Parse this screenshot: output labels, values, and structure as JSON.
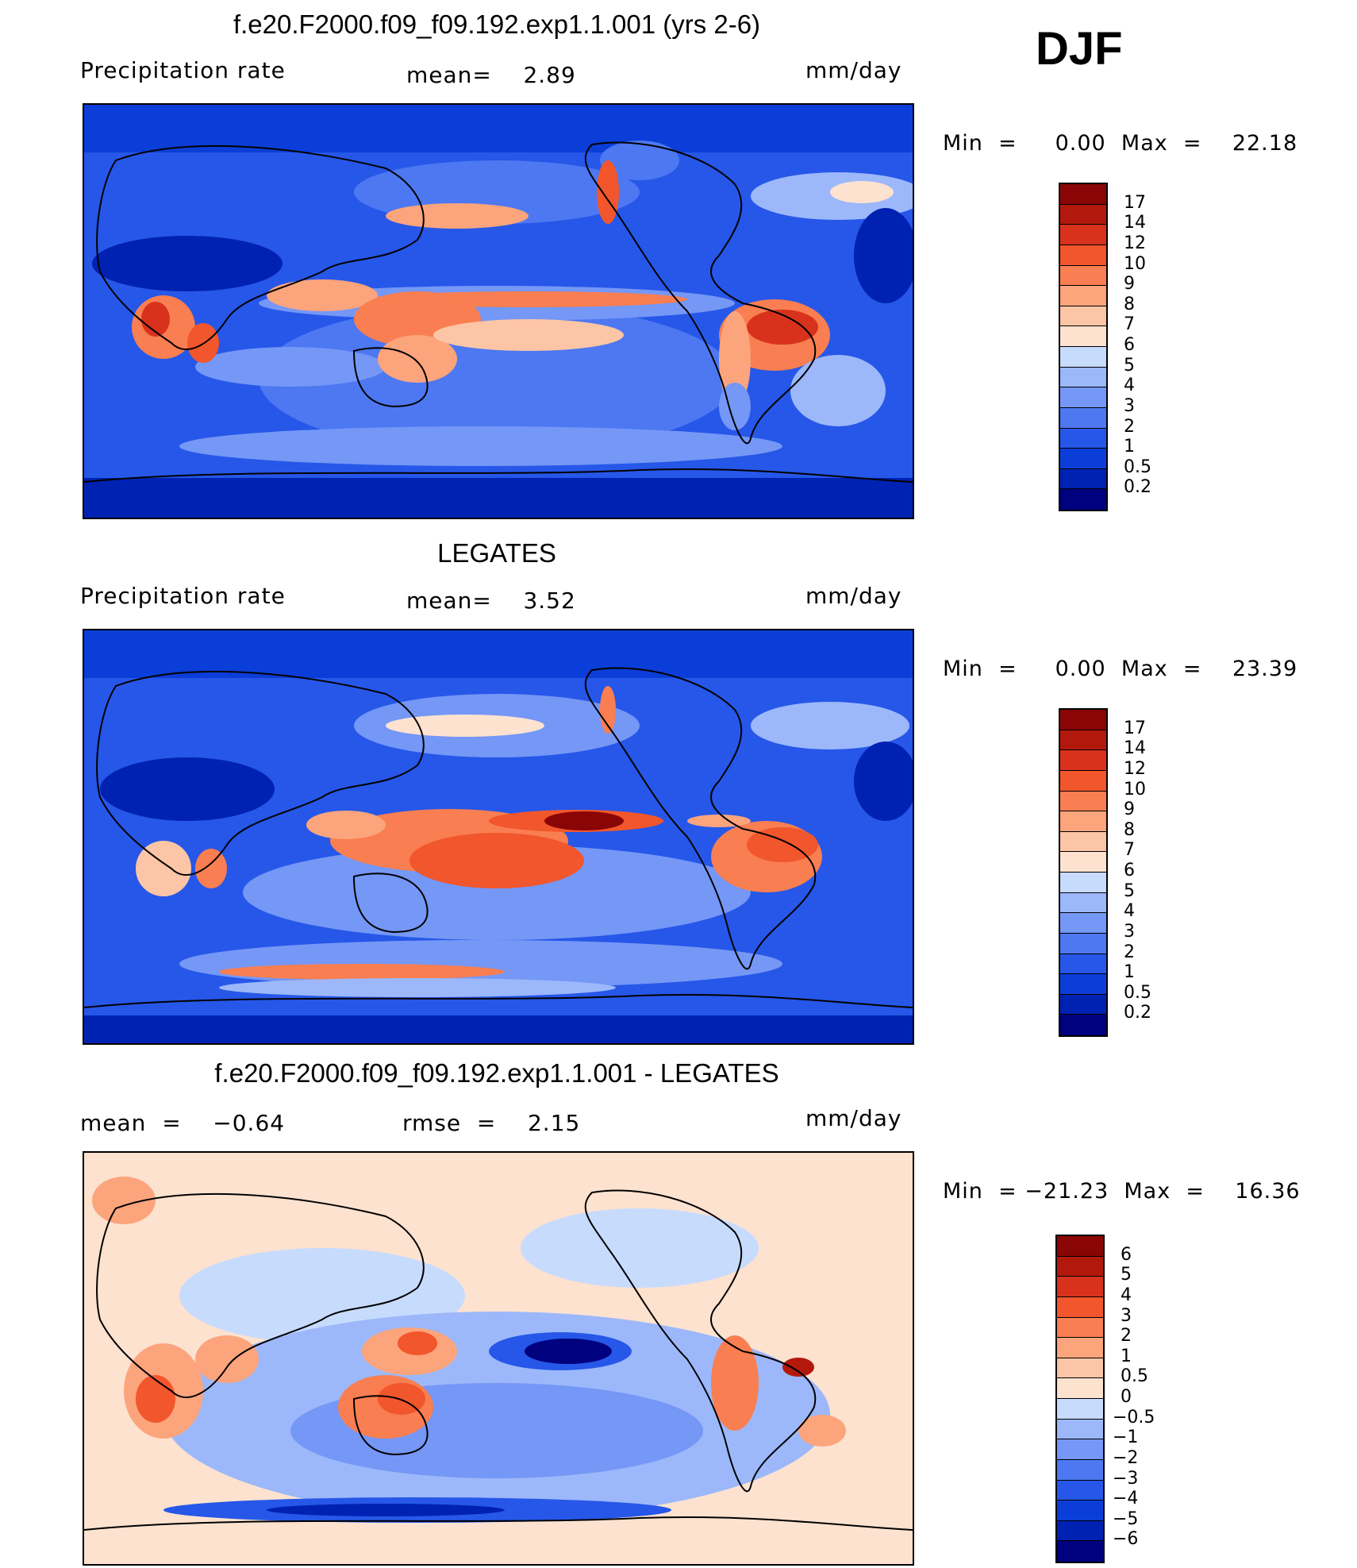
{
  "season": "DJF",
  "colors": {
    "precip": [
      "#00017f",
      "#0022b2",
      "#0b3ed8",
      "#2657e8",
      "#4d78f2",
      "#7597f6",
      "#9cb8fa",
      "#c7dbfd",
      "#fde2d0",
      "#fcc5a6",
      "#fca47c",
      "#f97e51",
      "#f2562c",
      "#d8321c",
      "#b2190c",
      "#8a0505"
    ],
    "diff": [
      "#00017f",
      "#0022b2",
      "#0b3ed8",
      "#2657e8",
      "#4d78f2",
      "#7597f6",
      "#9cb8fa",
      "#c7dbfd",
      "#fde2d0",
      "#fcc5a6",
      "#fca47c",
      "#f97e51",
      "#f2562c",
      "#d8321c",
      "#b2190c",
      "#8a0505"
    ]
  },
  "panels": [
    {
      "title": "f.e20.F2000.f09_f09.192.exp1.1.001 (yrs 2-6)",
      "left_label": "Precipitation  rate",
      "mid_label": "mean=    2.89",
      "right_label": "mm/day",
      "minmax": "Min  =     0.00  Max  =    22.18"
    },
    {
      "title": "LEGATES",
      "left_label": "Precipitation  rate",
      "mid_label": "mean=    3.52",
      "right_label": "mm/day",
      "minmax": "Min  =     0.00  Max  =    23.39"
    },
    {
      "title": "f.e20.F2000.f09_f09.192.exp1.1.001 - LEGATES",
      "left_label": "mean  =    −0.64",
      "mid_label": "rmse  =    2.15",
      "right_label": "mm/day",
      "minmax": "Min  = −21.23  Max  =    16.36"
    }
  ],
  "chart_data": [
    {
      "type": "heatmap",
      "title": "f.e20.F2000.f09_f09.192.exp1.1.001 (yrs 2-6)",
      "variable": "Precipitation rate",
      "units": "mm/day",
      "mean": 2.89,
      "min": 0.0,
      "max": 22.18,
      "colorbar_levels": [
        "17",
        "14",
        "12",
        "10",
        "9",
        "8",
        "7",
        "6",
        "5",
        "4",
        "3",
        "2",
        "1",
        "0.5",
        "0.2"
      ]
    },
    {
      "type": "heatmap",
      "title": "LEGATES",
      "variable": "Precipitation rate",
      "units": "mm/day",
      "mean": 3.52,
      "min": 0.0,
      "max": 23.39,
      "colorbar_levels": [
        "17",
        "14",
        "12",
        "10",
        "9",
        "8",
        "7",
        "6",
        "5",
        "4",
        "3",
        "2",
        "1",
        "0.5",
        "0.2"
      ]
    },
    {
      "type": "heatmap",
      "title": "f.e20.F2000.f09_f09.192.exp1.1.001 - LEGATES",
      "units": "mm/day",
      "mean": -0.64,
      "rmse": 2.15,
      "min": -21.23,
      "max": 16.36,
      "colorbar_levels": [
        "6",
        "5",
        "4",
        "3",
        "2",
        "1",
        "0.5",
        "0",
        "−0.5",
        "−1",
        "−2",
        "−3",
        "−4",
        "−5",
        "−6"
      ]
    }
  ]
}
